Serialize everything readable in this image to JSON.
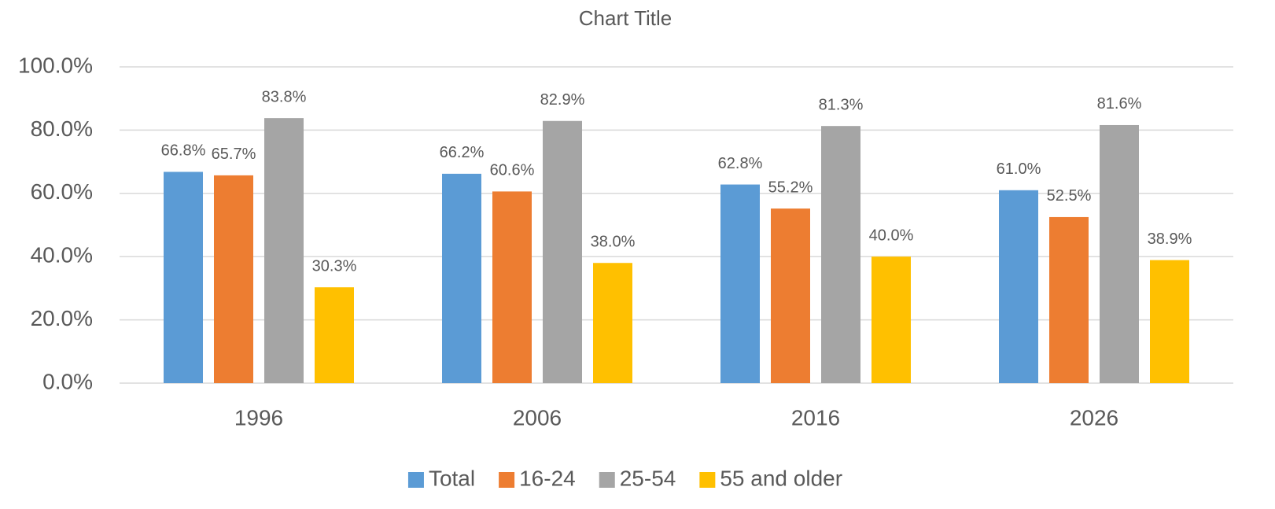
{
  "chart_data": {
    "type": "bar",
    "title": "Chart Title",
    "categories": [
      "1996",
      "2006",
      "2016",
      "2026"
    ],
    "series": [
      {
        "name": "Total",
        "color": "#5b9bd5",
        "values": [
          66.8,
          66.2,
          62.8,
          61.0
        ],
        "value_labels": [
          "66.8%",
          "66.2%",
          "62.8%",
          "61.0%"
        ]
      },
      {
        "name": "16-24",
        "color": "#ed7d31",
        "values": [
          65.7,
          60.6,
          55.2,
          52.5
        ],
        "value_labels": [
          "65.7%",
          "60.6%",
          "55.2%",
          "52.5%"
        ]
      },
      {
        "name": "25-54",
        "color": "#a5a5a5",
        "values": [
          83.8,
          82.9,
          81.3,
          81.6
        ],
        "value_labels": [
          "83.8%",
          "82.9%",
          "81.3%",
          "81.6%"
        ]
      },
      {
        "name": "55 and older",
        "color": "#ffc000",
        "values": [
          30.3,
          38.0,
          40.0,
          38.9
        ],
        "value_labels": [
          "30.3%",
          "38.0%",
          "40.0%",
          "38.9%"
        ]
      }
    ],
    "ylim": [
      0,
      100
    ],
    "yticks": [
      {
        "value": 0,
        "label": "0.0%"
      },
      {
        "value": 20,
        "label": "20.0%"
      },
      {
        "value": 40,
        "label": "40.0%"
      },
      {
        "value": 60,
        "label": "60.0%"
      },
      {
        "value": 80,
        "label": "80.0%"
      },
      {
        "value": 100,
        "label": "100.0%"
      }
    ],
    "grid": true,
    "legend": "bottom"
  }
}
